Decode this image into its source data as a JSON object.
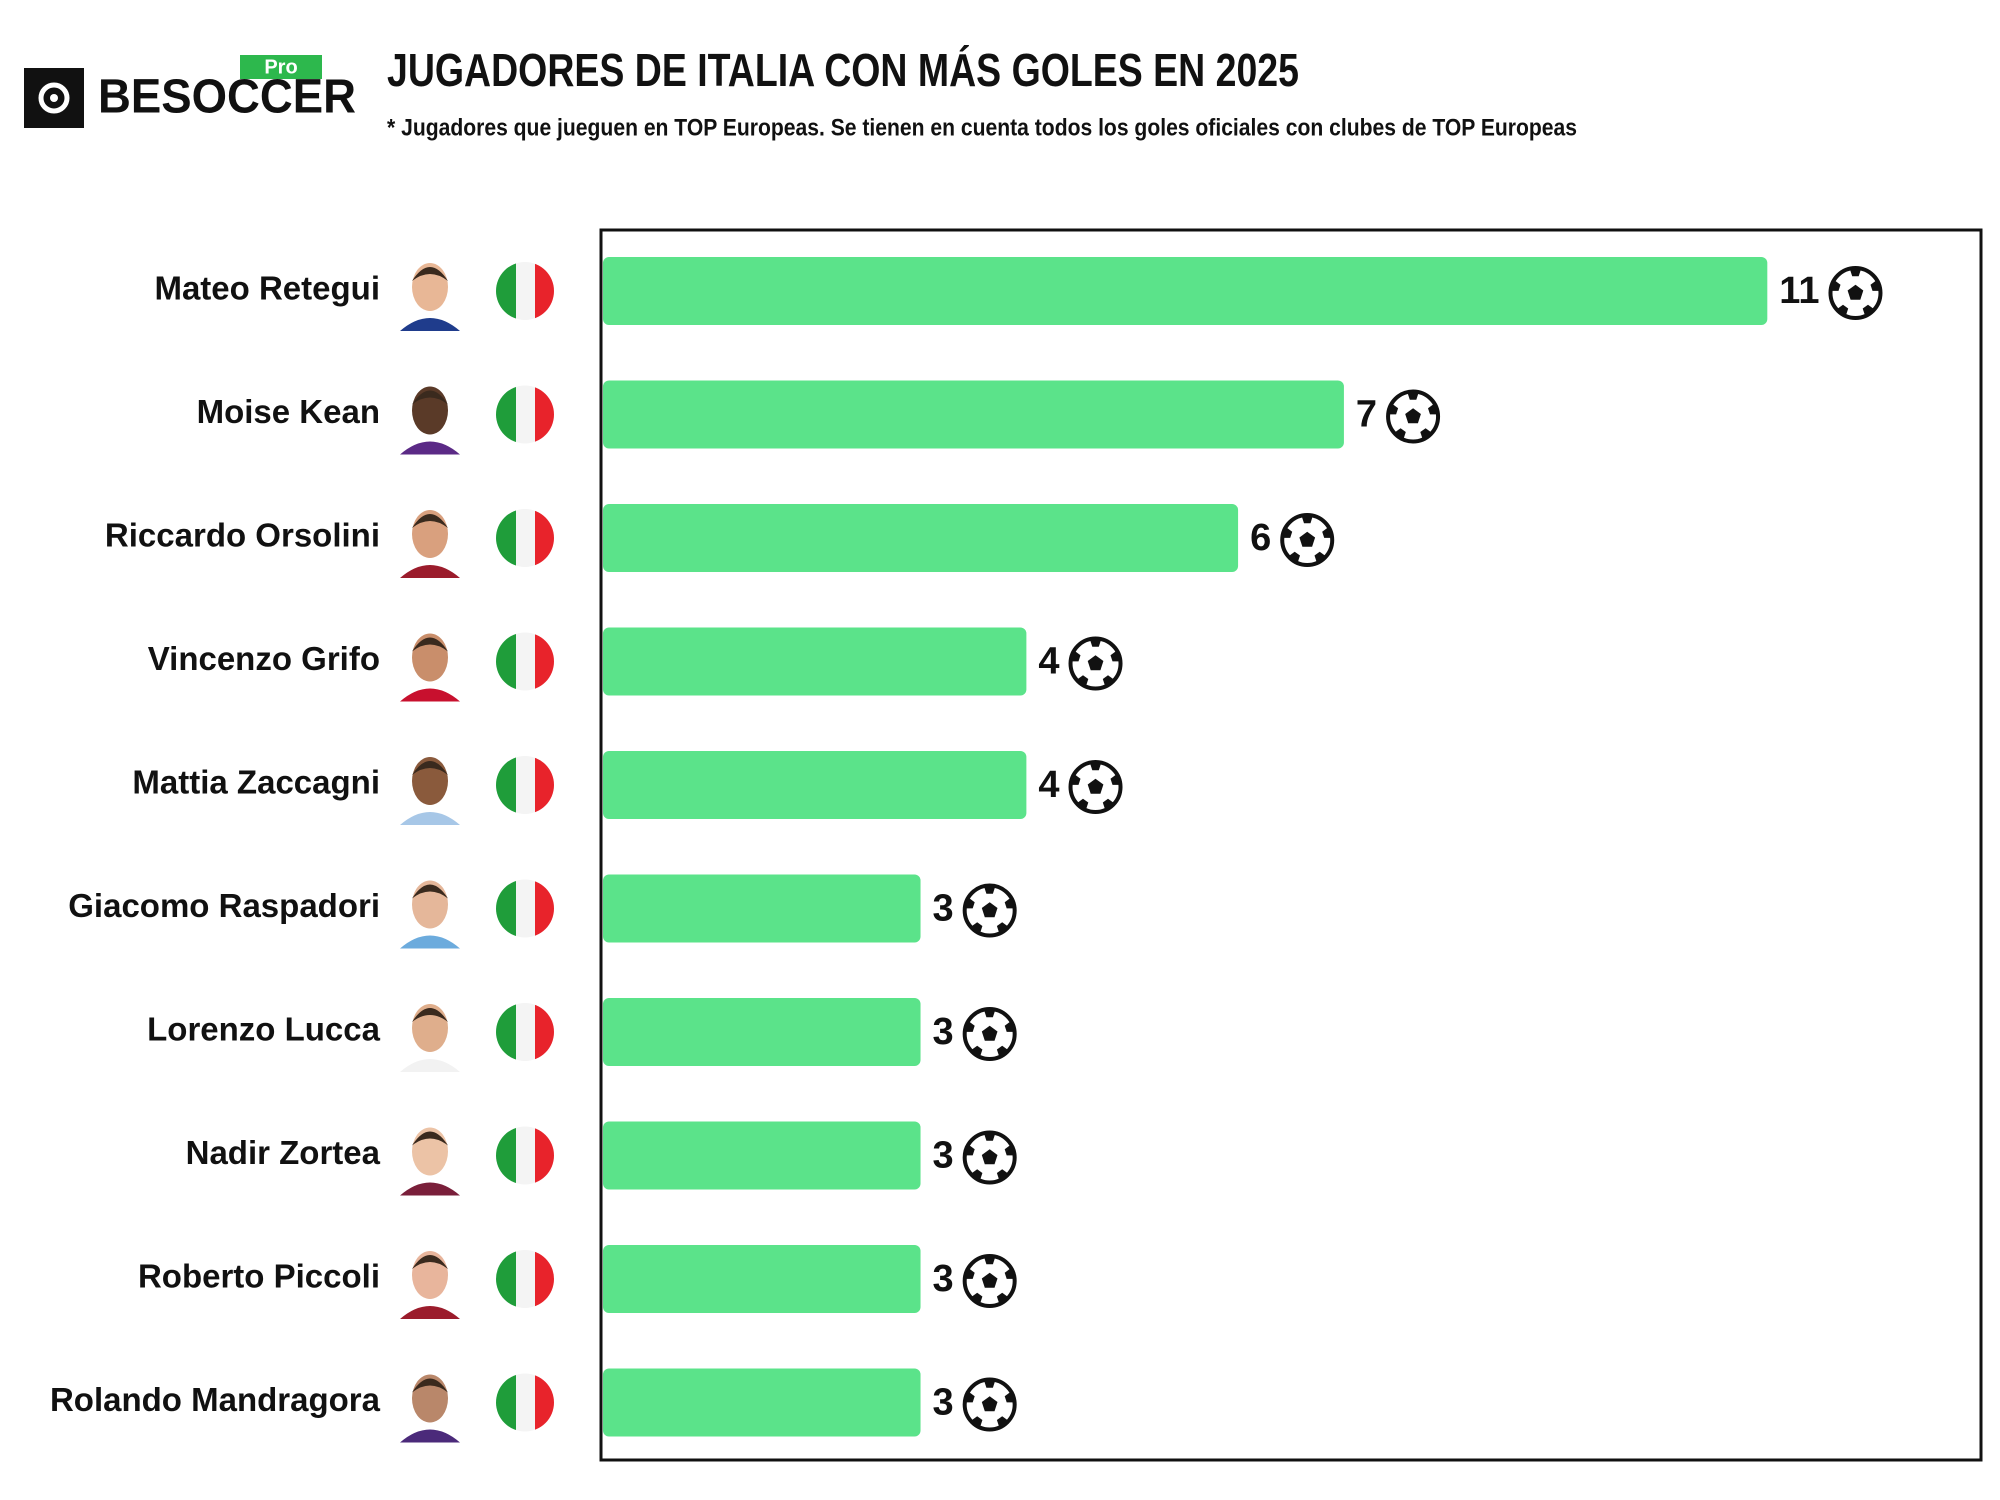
{
  "brand": {
    "name": "BESOCCER",
    "tag": "Pro"
  },
  "chart_data": {
    "type": "bar",
    "orientation": "horizontal",
    "title": "JUGADORES DE ITALIA CON MÁS GOLES EN 2025",
    "subtitle": "* Jugadores que jueguen en TOP Europeas. Se tienen en cuenta todos los goles oficiales con clubes de TOP Europeas",
    "categories": [
      "Mateo Retegui",
      "Moise Kean",
      "Riccardo Orsolini",
      "Vincenzo Grifo",
      "Mattia Zaccagni",
      "Giacomo Raspadori",
      "Lorenzo Lucca",
      "Nadir Zortea",
      "Roberto Piccoli",
      "Rolando Mandragora"
    ],
    "values": [
      11,
      7,
      6,
      4,
      4,
      3,
      3,
      3,
      3,
      3
    ],
    "color": "#5be38a",
    "xlim": [
      0,
      13
    ]
  }
}
